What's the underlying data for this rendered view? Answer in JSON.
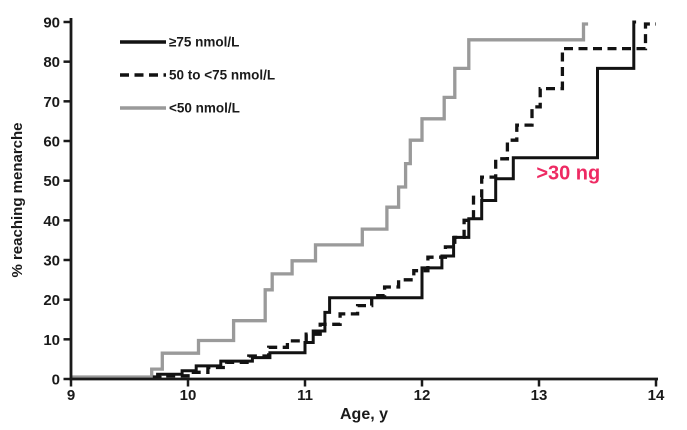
{
  "chart_data": {
    "type": "line",
    "subtype": "step-cumulative-incidence",
    "title": "",
    "xlabel": "Age, y",
    "ylabel": "% reaching menarche",
    "xlim": [
      9,
      14
    ],
    "ylim": [
      0,
      90
    ],
    "xticks": [
      9,
      10,
      11,
      12,
      13,
      14
    ],
    "yticks": [
      0,
      10,
      20,
      30,
      40,
      50,
      60,
      70,
      80,
      90
    ],
    "grid": false,
    "legend_position": "top-left-inside",
    "axis_color": "#1a1a1a",
    "series": [
      {
        "name": "≥75 nmol/L",
        "style": "solid",
        "color": "#121212",
        "start_age": 9.7,
        "end_age": 13.83,
        "steps": [
          [
            9.74,
            1.2
          ],
          [
            9.95,
            2.1
          ],
          [
            10.07,
            3.3
          ],
          [
            10.28,
            4.5
          ],
          [
            10.55,
            5.4
          ],
          [
            10.7,
            6.6
          ],
          [
            11.0,
            9.2
          ],
          [
            11.07,
            12.1
          ],
          [
            11.17,
            16.8
          ],
          [
            11.21,
            20.5
          ],
          [
            12.0,
            28.0
          ],
          [
            12.17,
            31.0
          ],
          [
            12.27,
            35.7
          ],
          [
            12.4,
            40.4
          ],
          [
            12.51,
            45.0
          ],
          [
            12.63,
            50.5
          ],
          [
            12.78,
            55.8
          ],
          [
            13.5,
            78.3
          ],
          [
            13.81,
            90.0
          ]
        ]
      },
      {
        "name": "50 to <75 nmol/L",
        "style": "dashed",
        "color": "#121212",
        "start_age": 9.7,
        "end_age": 14.0,
        "steps": [
          [
            9.76,
            0.8
          ],
          [
            10.02,
            1.7
          ],
          [
            10.17,
            2.9
          ],
          [
            10.33,
            4.2
          ],
          [
            10.52,
            5.8
          ],
          [
            10.69,
            8.0
          ],
          [
            10.85,
            9.6
          ],
          [
            11.01,
            11.3
          ],
          [
            11.13,
            13.8
          ],
          [
            11.3,
            16.4
          ],
          [
            11.45,
            18.5
          ],
          [
            11.57,
            21.0
          ],
          [
            11.68,
            23.2
          ],
          [
            11.8,
            25.0
          ],
          [
            11.93,
            27.3
          ],
          [
            12.05,
            30.7
          ],
          [
            12.2,
            33.3
          ],
          [
            12.28,
            35.7
          ],
          [
            12.36,
            40.0
          ],
          [
            12.44,
            45.8
          ],
          [
            12.51,
            50.9
          ],
          [
            12.63,
            55.5
          ],
          [
            12.73,
            60.2
          ],
          [
            12.81,
            64.0
          ],
          [
            12.94,
            68.6
          ],
          [
            13.01,
            73.2
          ],
          [
            13.2,
            83.3
          ],
          [
            13.91,
            89.5
          ]
        ]
      },
      {
        "name": "<50 nmol/L",
        "style": "solid",
        "color": "#9a9a9a",
        "start_age": 9.0,
        "end_age": 13.42,
        "steps": [
          [
            9.69,
            2.5
          ],
          [
            9.78,
            6.5
          ],
          [
            10.09,
            9.7
          ],
          [
            10.39,
            14.7
          ],
          [
            10.66,
            22.5
          ],
          [
            10.72,
            26.5
          ],
          [
            10.89,
            29.8
          ],
          [
            11.09,
            33.8
          ],
          [
            11.49,
            37.8
          ],
          [
            11.7,
            43.3
          ],
          [
            11.8,
            48.4
          ],
          [
            11.86,
            54.3
          ],
          [
            11.9,
            60.2
          ],
          [
            12.0,
            65.6
          ],
          [
            12.19,
            71.0
          ],
          [
            12.28,
            78.3
          ],
          [
            12.4,
            85.5
          ],
          [
            13.38,
            89.5
          ]
        ]
      }
    ],
    "annotation": {
      "text": ">30 ng",
      "color": "#ee2a63",
      "age": 13.25,
      "pct": 52
    }
  }
}
